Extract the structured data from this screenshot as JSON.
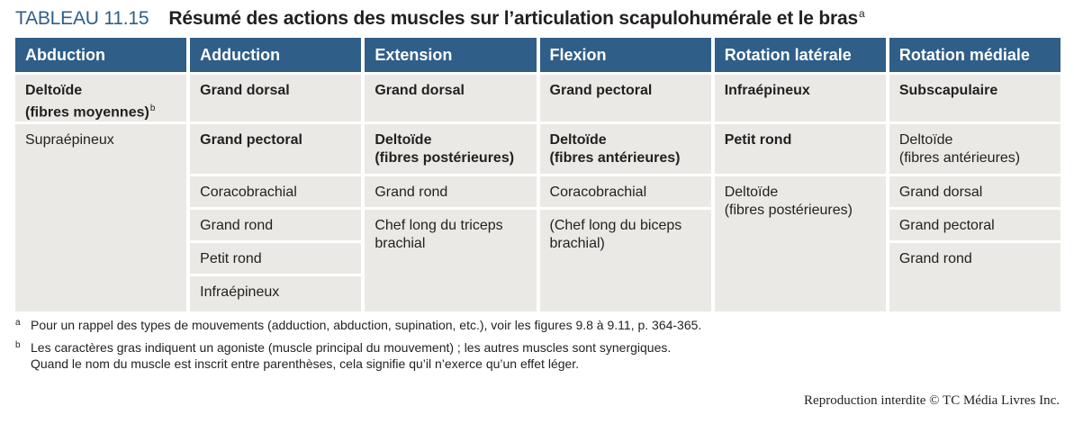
{
  "title": {
    "number": "TABLEAU 11.15",
    "text": "Résumé des actions des muscles sur l’articulation scapulohumérale et le bras",
    "sup": "a"
  },
  "columns": [
    {
      "header": "Abduction",
      "cells": [
        {
          "lines": [
            "Deltoïde",
            "(fibres moyennes)"
          ],
          "bold": true,
          "sup": "b"
        },
        {
          "lines": [
            "Supraépineux"
          ],
          "bold": false
        }
      ]
    },
    {
      "header": "Adduction",
      "cells": [
        {
          "lines": [
            "Grand dorsal"
          ],
          "bold": true
        },
        {
          "lines": [
            "Grand pectoral"
          ],
          "bold": true
        },
        {
          "lines": [
            "Coracobrachial"
          ],
          "bold": false
        },
        {
          "lines": [
            "Grand rond"
          ],
          "bold": false
        },
        {
          "lines": [
            "Petit rond"
          ],
          "bold": false
        },
        {
          "lines": [
            "Infraépineux"
          ],
          "bold": false
        }
      ]
    },
    {
      "header": "Extension",
      "cells": [
        {
          "lines": [
            "Grand dorsal"
          ],
          "bold": true
        },
        {
          "lines": [
            "Deltoïde",
            "(fibres postérieures)"
          ],
          "bold": true
        },
        {
          "lines": [
            "Grand rond"
          ],
          "bold": false
        },
        {
          "lines": [
            "Chef long du triceps",
            "brachial"
          ],
          "bold": false
        }
      ]
    },
    {
      "header": "Flexion",
      "cells": [
        {
          "lines": [
            "Grand pectoral"
          ],
          "bold": true
        },
        {
          "lines": [
            "Deltoïde",
            "(fibres antérieures)"
          ],
          "bold": true
        },
        {
          "lines": [
            "Coracobrachial"
          ],
          "bold": false
        },
        {
          "lines": [
            "(Chef long du biceps",
            "brachial)"
          ],
          "bold": false
        }
      ]
    },
    {
      "header": "Rotation latérale",
      "cells": [
        {
          "lines": [
            "Infraépineux"
          ],
          "bold": true
        },
        {
          "lines": [
            "Petit rond"
          ],
          "bold": true
        },
        {
          "lines": [
            "Deltoïde",
            "(fibres postérieures)"
          ],
          "bold": false
        }
      ]
    },
    {
      "header": "Rotation médiale",
      "cells": [
        {
          "lines": [
            "Subscapulaire"
          ],
          "bold": true
        },
        {
          "lines": [
            "Deltoïde",
            "(fibres antérieures)"
          ],
          "bold": false
        },
        {
          "lines": [
            "Grand dorsal"
          ],
          "bold": false
        },
        {
          "lines": [
            "Grand pectoral"
          ],
          "bold": false
        },
        {
          "lines": [
            "Grand rond"
          ],
          "bold": false
        }
      ]
    }
  ],
  "footnotes": [
    {
      "mark": "a",
      "lines": [
        "Pour un rappel des types de mouvements (adduction, abduction, supination, etc.), voir les figures 9.8 à 9.11, p. 364-365."
      ]
    },
    {
      "mark": "b",
      "lines": [
        "Les caractères gras indiquent un agoniste (muscle principal du mouvement) ; les autres muscles sont synergiques.",
        "Quand le nom du muscle est inscrit entre parenthèses, cela signifie qu’il n’exerce qu’un effet léger."
      ]
    }
  ],
  "copyright": "Reproduction interdite © TC Média Livres Inc.",
  "colors": {
    "header_bg": "#2f5e88",
    "cell_bg": "#eae9e5",
    "title_number": "#2f5e88"
  }
}
